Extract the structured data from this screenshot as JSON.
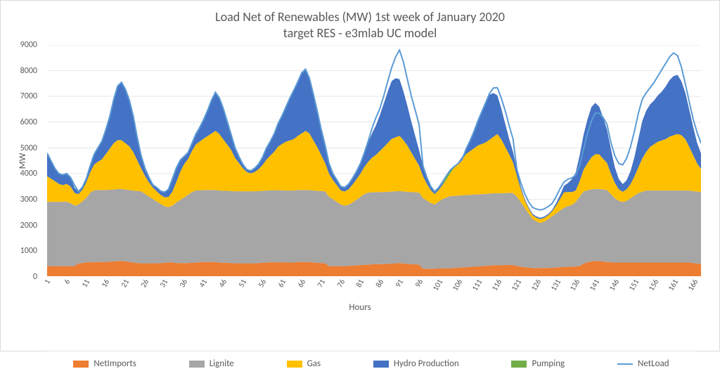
{
  "chart": {
    "type": "stacked-area-with-line",
    "title_line1": "Load Net of Renewables (MW) 1st week of January 2020",
    "title_line2": "target RES - e3mlab UC model",
    "title_fontsize": 18,
    "title_color": "#595959",
    "background_color": "#ffffff",
    "grid_color": "#e6e6e6",
    "plot_border_color": "#d9d9d9",
    "y_axis": {
      "label": "MW",
      "min": 0,
      "max": 9000,
      "tick_step": 1000,
      "tick_color": "#595959",
      "tick_fontsize": 12
    },
    "x_axis": {
      "label": "Hours",
      "min": 1,
      "max": 168,
      "tick_step": 5,
      "tick_color": "#595959",
      "tick_fontsize": 11,
      "tick_rotation_deg": -60
    },
    "series": {
      "NetImports": {
        "label": "NetImports",
        "color": "#ed7d31",
        "type": "area",
        "stack_order": 0,
        "data": [
          400,
          400,
          400,
          400,
          400,
          400,
          400,
          400,
          500,
          520,
          550,
          550,
          550,
          560,
          560,
          560,
          570,
          580,
          600,
          600,
          580,
          560,
          540,
          520,
          510,
          510,
          510,
          510,
          510,
          520,
          530,
          540,
          550,
          520,
          520,
          520,
          520,
          530,
          540,
          550,
          560,
          560,
          560,
          560,
          540,
          530,
          530,
          520,
          510,
          510,
          510,
          510,
          510,
          510,
          520,
          530,
          540,
          550,
          550,
          550,
          550,
          540,
          540,
          540,
          560,
          560,
          560,
          560,
          540,
          530,
          520,
          510,
          400,
          400,
          400,
          400,
          400,
          410,
          420,
          430,
          440,
          450,
          460,
          470,
          480,
          480,
          480,
          490,
          500,
          510,
          520,
          500,
          490,
          480,
          470,
          460,
          300,
          300,
          300,
          300,
          310,
          310,
          320,
          320,
          330,
          340,
          350,
          360,
          370,
          380,
          390,
          400,
          410,
          420,
          430,
          440,
          430,
          440,
          450,
          440,
          400,
          380,
          360,
          340,
          330,
          330,
          330,
          330,
          330,
          340,
          350,
          360,
          370,
          380,
          380,
          390,
          400,
          500,
          550,
          580,
          600,
          600,
          580,
          560,
          550,
          540,
          540,
          540,
          540,
          540,
          540,
          540,
          540,
          540,
          540,
          540,
          540,
          540,
          540,
          540,
          540,
          540,
          540,
          540,
          540,
          520,
          500,
          480
        ]
      },
      "Lignite": {
        "label": "Lignite",
        "color": "#a6a6a6",
        "type": "area",
        "stack_order": 1,
        "data": [
          2500,
          2500,
          2500,
          2500,
          2500,
          2500,
          2450,
          2350,
          2300,
          2400,
          2500,
          2700,
          2800,
          2800,
          2800,
          2800,
          2800,
          2800,
          2800,
          2800,
          2800,
          2800,
          2800,
          2800,
          2800,
          2700,
          2600,
          2500,
          2400,
          2300,
          2200,
          2150,
          2200,
          2350,
          2450,
          2550,
          2650,
          2750,
          2800,
          2800,
          2800,
          2800,
          2800,
          2800,
          2800,
          2800,
          2800,
          2800,
          2800,
          2800,
          2800,
          2800,
          2800,
          2800,
          2800,
          2800,
          2800,
          2800,
          2800,
          2800,
          2800,
          2800,
          2800,
          2800,
          2800,
          2800,
          2800,
          2800,
          2800,
          2800,
          2800,
          2800,
          2700,
          2600,
          2500,
          2400,
          2350,
          2380,
          2450,
          2550,
          2650,
          2750,
          2800,
          2800,
          2800,
          2800,
          2800,
          2800,
          2800,
          2800,
          2800,
          2800,
          2800,
          2800,
          2800,
          2800,
          2750,
          2650,
          2550,
          2500,
          2600,
          2700,
          2750,
          2800,
          2800,
          2800,
          2800,
          2800,
          2800,
          2800,
          2800,
          2800,
          2800,
          2800,
          2800,
          2800,
          2800,
          2800,
          2800,
          2800,
          2700,
          2500,
          2300,
          2100,
          1900,
          1800,
          1750,
          1800,
          1900,
          2000,
          2100,
          2200,
          2300,
          2350,
          2400,
          2500,
          2700,
          2800,
          2800,
          2800,
          2800,
          2800,
          2800,
          2800,
          2650,
          2500,
          2400,
          2350,
          2400,
          2500,
          2600,
          2700,
          2750,
          2800,
          2800,
          2800,
          2800,
          2800,
          2800,
          2800,
          2800,
          2800,
          2800,
          2800,
          2800,
          2800,
          2800,
          2800
        ]
      },
      "Gas": {
        "label": "Gas",
        "color": "#ffc000",
        "type": "area",
        "stack_order": 2,
        "data": [
          1000,
          900,
          800,
          700,
          650,
          700,
          650,
          500,
          400,
          450,
          600,
          800,
          1000,
          1100,
          1200,
          1400,
          1600,
          1800,
          1900,
          1900,
          1800,
          1700,
          1500,
          1200,
          900,
          700,
          550,
          450,
          400,
          350,
          350,
          400,
          550,
          800,
          1100,
          1300,
          1400,
          1600,
          1800,
          1900,
          2000,
          2100,
          2200,
          2300,
          2200,
          2000,
          1800,
          1600,
          1300,
          1100,
          900,
          750,
          700,
          750,
          850,
          1000,
          1200,
          1350,
          1500,
          1700,
          1800,
          1900,
          1950,
          2000,
          2100,
          2200,
          2300,
          2200,
          1950,
          1700,
          1400,
          1100,
          900,
          750,
          650,
          550,
          550,
          600,
          700,
          800,
          900,
          1050,
          1200,
          1350,
          1450,
          1600,
          1750,
          1900,
          2050,
          2100,
          2150,
          2000,
          1800,
          1550,
          1300,
          1050,
          850,
          650,
          500,
          400,
          450,
          550,
          700,
          900,
          1100,
          1250,
          1400,
          1600,
          1700,
          1800,
          1900,
          1950,
          2000,
          2100,
          2200,
          2300,
          2100,
          1800,
          1500,
          1200,
          800,
          500,
          300,
          200,
          150,
          150,
          150,
          150,
          150,
          200,
          300,
          450,
          600,
          550,
          500,
          450,
          600,
          850,
          1050,
          1250,
          1350,
          1350,
          1200,
          1050,
          800,
          600,
          450,
          400,
          450,
          550,
          750,
          1000,
          1300,
          1500,
          1700,
          1800,
          1900,
          1950,
          2000,
          2100,
          2150,
          2200,
          2150,
          2000,
          1700,
          1400,
          1100,
          900
        ]
      },
      "HydroProduction": {
        "label": "Hydro Production",
        "color": "#4472c4",
        "type": "area",
        "stack_order": 3,
        "data": [
          900,
          700,
          500,
          400,
          400,
          400,
          350,
          200,
          100,
          100,
          150,
          250,
          400,
          550,
          700,
          950,
          1250,
          1700,
          2100,
          2250,
          2100,
          1800,
          1400,
          900,
          500,
          300,
          200,
          150,
          150,
          150,
          200,
          300,
          500,
          550,
          450,
          300,
          250,
          300,
          400,
          550,
          750,
          1000,
          1300,
          1500,
          1400,
          1200,
          900,
          600,
          400,
          250,
          150,
          100,
          100,
          150,
          200,
          300,
          450,
          550,
          700,
          900,
          1100,
          1350,
          1650,
          1900,
          2100,
          2350,
          2400,
          2150,
          1800,
          1400,
          1000,
          700,
          400,
          250,
          200,
          150,
          150,
          200,
          250,
          300,
          400,
          550,
          750,
          950,
          1150,
          1400,
          1700,
          2000,
          2250,
          2300,
          2200,
          1900,
          1550,
          1200,
          900,
          600,
          400,
          250,
          150,
          100,
          100,
          50,
          0,
          0,
          0,
          50,
          100,
          200,
          400,
          650,
          950,
          1250,
          1550,
          1750,
          1700,
          1500,
          1200,
          900,
          600,
          400,
          250,
          100,
          50,
          50,
          50,
          50,
          50,
          50,
          50,
          50,
          100,
          150,
          250,
          350,
          500,
          700,
          1000,
          1350,
          1700,
          1950,
          2000,
          1850,
          1600,
          1300,
          950,
          600,
          400,
          300,
          350,
          500,
          750,
          1100,
          1450,
          1600,
          1650,
          1700,
          1800,
          1900,
          2050,
          2200,
          2300,
          2300,
          2100,
          1800,
          1450,
          1100,
          800,
          600
        ]
      },
      "Pumping": {
        "label": "Pumping",
        "color": "#70ad47",
        "type": "area",
        "stack_order": 4,
        "data": [
          0,
          0,
          0,
          0,
          0,
          0,
          0,
          0,
          0,
          0,
          0,
          0,
          0,
          0,
          0,
          0,
          0,
          0,
          0,
          0,
          0,
          0,
          0,
          0,
          0,
          0,
          0,
          0,
          0,
          0,
          0,
          0,
          0,
          0,
          0,
          0,
          0,
          0,
          0,
          0,
          0,
          0,
          0,
          0,
          0,
          0,
          0,
          0,
          0,
          0,
          0,
          0,
          0,
          0,
          0,
          0,
          0,
          0,
          0,
          0,
          0,
          0,
          0,
          0,
          0,
          0,
          0,
          0,
          0,
          0,
          0,
          0,
          0,
          0,
          0,
          0,
          0,
          0,
          0,
          0,
          0,
          0,
          0,
          0,
          0,
          0,
          0,
          0,
          0,
          0,
          0,
          0,
          0,
          0,
          0,
          0,
          0,
          0,
          0,
          0,
          0,
          120,
          150,
          120,
          60,
          0,
          0,
          0,
          0,
          0,
          0,
          0,
          0,
          0,
          0,
          0,
          0,
          0,
          0,
          0,
          0,
          0,
          0,
          0,
          0,
          0,
          0,
          0,
          0,
          0,
          0,
          0,
          0,
          0,
          0,
          0,
          0,
          0,
          0,
          0,
          0,
          0,
          0,
          0,
          0,
          0,
          0,
          0,
          0,
          0,
          0,
          0,
          0,
          0,
          0,
          0,
          0,
          0,
          0,
          0,
          0,
          0,
          0,
          0,
          0,
          0,
          0,
          0
        ]
      }
    },
    "line_series": {
      "NetLoad": {
        "label": "NetLoad",
        "color": "#5b9bd5",
        "width": 2,
        "data": [
          4800,
          4500,
          4200,
          4000,
          3950,
          4000,
          3850,
          3550,
          3300,
          3470,
          3800,
          4300,
          4750,
          5010,
          5260,
          5710,
          6220,
          6880,
          7400,
          7550,
          7280,
          6860,
          6240,
          5420,
          4710,
          4210,
          3860,
          3560,
          3460,
          3320,
          3280,
          3390,
          3800,
          4220,
          4520,
          4670,
          4820,
          5180,
          5540,
          5800,
          6110,
          6460,
          6860,
          7160,
          6940,
          6530,
          6030,
          5520,
          5010,
          4660,
          4360,
          4160,
          4110,
          4210,
          4370,
          4630,
          4990,
          5250,
          5550,
          5950,
          6250,
          6590,
          6940,
          7240,
          7560,
          7910,
          8060,
          7710,
          7090,
          6430,
          5720,
          5110,
          4400,
          4000,
          3750,
          3500,
          3460,
          3590,
          3820,
          4080,
          4390,
          4800,
          5260,
          5770,
          6180,
          6530,
          7030,
          7590,
          8120,
          8530,
          8800,
          8340,
          7670,
          7030,
          6470,
          5910,
          4300,
          3850,
          3500,
          3300,
          3460,
          3680,
          3920,
          4140,
          4280,
          4390,
          4550,
          4960,
          5270,
          5630,
          6040,
          6400,
          6760,
          7120,
          7330,
          7340,
          6930,
          6440,
          5870,
          5340,
          4150,
          3630,
          3210,
          2890,
          2680,
          2620,
          2580,
          2630,
          2720,
          2840,
          3100,
          3410,
          3670,
          3780,
          3830,
          3940,
          4300,
          4950,
          5550,
          6030,
          6350,
          6350,
          6180,
          5910,
          5200,
          4690,
          4390,
          4340,
          4590,
          5040,
          5640,
          6340,
          6890,
          7140,
          7340,
          7540,
          7790,
          8040,
          8290,
          8540,
          8690,
          8590,
          8140,
          7490,
          6790,
          6120,
          5600,
          5180
        ]
      }
    }
  },
  "legend_items": [
    {
      "key": "NetImports",
      "label": "NetImports",
      "color": "#ed7d31",
      "type": "area"
    },
    {
      "key": "Lignite",
      "label": "Lignite",
      "color": "#a6a6a6",
      "type": "area"
    },
    {
      "key": "Gas",
      "label": "Gas",
      "color": "#ffc000",
      "type": "area"
    },
    {
      "key": "HydroProduction",
      "label": "Hydro Production",
      "color": "#4472c4",
      "type": "area"
    },
    {
      "key": "Pumping",
      "label": "Pumping",
      "color": "#70ad47",
      "type": "area"
    },
    {
      "key": "NetLoad",
      "label": "NetLoad",
      "color": "#5b9bd5",
      "type": "line"
    }
  ]
}
